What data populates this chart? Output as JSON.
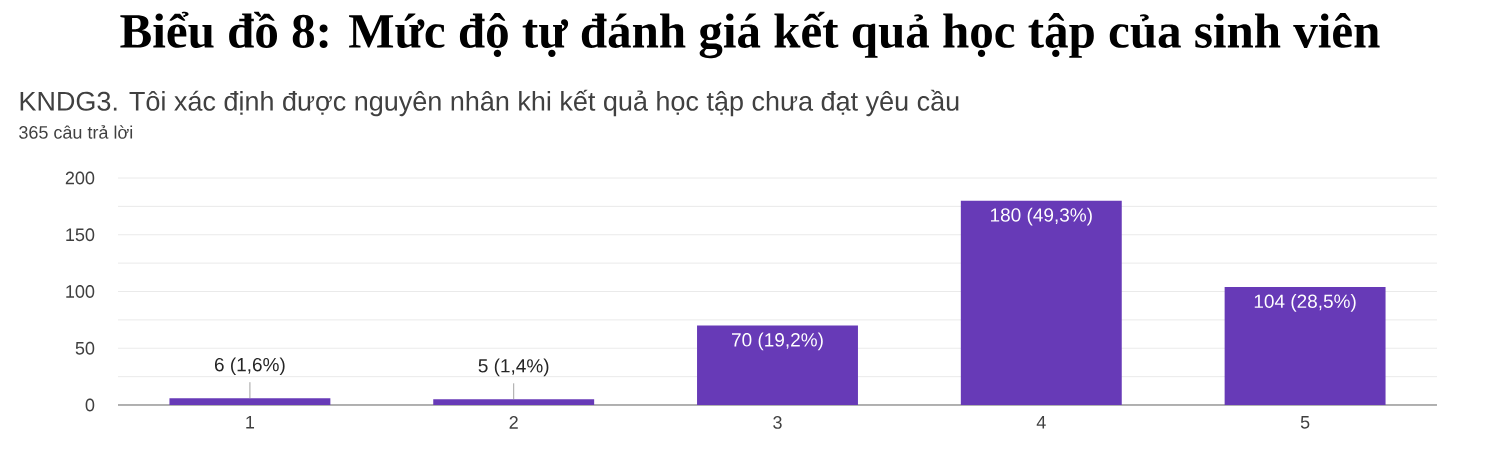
{
  "chart_data": {
    "type": "bar",
    "title": "Biểu đồ 8: Mức độ tự đánh giá kết quả học tập của sinh viên",
    "subtitle": "KNDG3. Tôi xác định được nguyên nhân khi kết quả học tập chưa đạt yêu cầu",
    "annotations": [
      "365 câu trả lời"
    ],
    "categories": [
      "1",
      "2",
      "3",
      "4",
      "5"
    ],
    "values": [
      6,
      5,
      70,
      180,
      104
    ],
    "value_labels": [
      "6 (1,6%)",
      "5 (1,4%)",
      "70 (19,2%)",
      "180 (49,3%)",
      "104 (28,5%)"
    ],
    "color": "#673ab7",
    "ylim": [
      0,
      200
    ],
    "yticks": [
      0,
      {
        "value": 25,
        "label": null
      },
      50,
      {
        "value": 75,
        "label": null
      },
      100,
      {
        "value": 125,
        "label": null
      },
      150,
      {
        "value": 175,
        "label": null
      },
      200
    ],
    "grid": "y"
  }
}
